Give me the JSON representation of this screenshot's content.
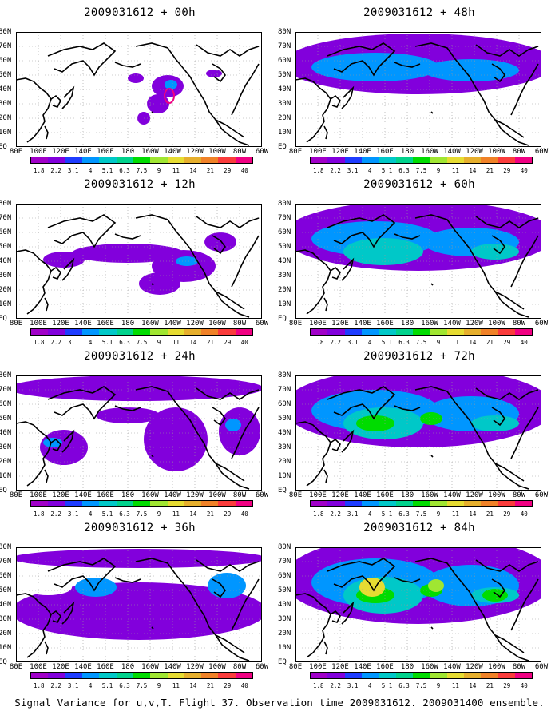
{
  "panels": [
    {
      "title": "2009031612 + 00h",
      "level": 0
    },
    {
      "title": "2009031612 + 12h",
      "level": 1
    },
    {
      "title": "2009031612 + 24h",
      "level": 2
    },
    {
      "title": "2009031612 + 36h",
      "level": 3
    },
    {
      "title": "2009031612 + 48h",
      "level": 4
    },
    {
      "title": "2009031612 + 60h",
      "level": 5
    },
    {
      "title": "2009031612 + 72h",
      "level": 6
    },
    {
      "title": "2009031612 + 84h",
      "level": 7
    }
  ],
  "lat_labels": [
    "80N",
    "70N",
    "60N",
    "50N",
    "40N",
    "30N",
    "20N",
    "10N",
    "EQ"
  ],
  "lon_labels": [
    "80E",
    "100E",
    "120E",
    "140E",
    "160E",
    "180",
    "160W",
    "140W",
    "120W",
    "100W",
    "80W",
    "60W"
  ],
  "colorbar": {
    "labels": [
      "1.8",
      "2.2",
      "3.1",
      "4",
      "5.1",
      "6.3",
      "7.5",
      "9",
      "11",
      "14",
      "21",
      "29",
      "40"
    ],
    "colors": [
      "#a000c8",
      "#8200dc",
      "#1e3cff",
      "#0096ff",
      "#00c8c8",
      "#00d28c",
      "#00dc00",
      "#a0e632",
      "#e6dc32",
      "#e6af2d",
      "#f08228",
      "#fa3c3c",
      "#f00082"
    ]
  },
  "caption": "Signal Variance for u,v,T. Flight 37. Observation time 2009031612. 2009031400 ensemble."
}
